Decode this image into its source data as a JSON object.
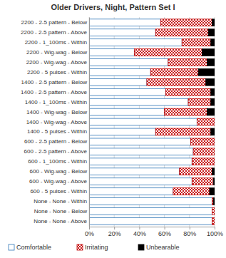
{
  "chart_data": {
    "type": "bar",
    "orientation": "horizontal",
    "stacked": true,
    "grid": true,
    "legend": "bottom",
    "title": "Older Drivers, Night, Pattern Set I",
    "categories": [
      "2200 - 2-5 pattern - Below",
      "2200 - 2-5 pattern - Above",
      "2200 - 1_100ms - Within",
      "2200 - Wig-wag - Below",
      "2200 - Wig-wag - Above",
      "2200 - 5 pulses - Within",
      "1400 - 2-5 pattern - Below",
      "1400 - 2-5 pattern - Above",
      "1400 - 1_100ms - Within",
      "1400 - Wig-wag - Below",
      "1400 - Wig-wag - Above",
      "1400 - 5 pulses - Within",
      "600 - 2-5 pattern - Below",
      "600 - 2-5 pattern - Above",
      "600 - 1_100ms - Within",
      "600 - Wig-wag - Below",
      "600 - Wig-wag - Above",
      "600 - 5 pulses - Within",
      "None - None - Within",
      "None - None - Below",
      "None - None - Above"
    ],
    "series": [
      {
        "name": "Comfortable",
        "color": "#2e75b6",
        "values": [
          57,
          53,
          74,
          36,
          63,
          49,
          46,
          61,
          79,
          60,
          86,
          53,
          81,
          83,
          82,
          72,
          82,
          67,
          98,
          98,
          98
        ]
      },
      {
        "name": "Irritating",
        "color": "#c00000",
        "values": [
          41,
          42,
          23,
          54,
          31,
          38,
          47,
          36,
          18,
          34,
          14,
          44,
          19,
          17,
          18,
          26,
          17,
          29,
          1,
          2,
          2
        ]
      },
      {
        "name": "Unbearable",
        "color": "#000000",
        "values": [
          2,
          5,
          3,
          10,
          6,
          13,
          7,
          3,
          3,
          6,
          0,
          3,
          0,
          0,
          0,
          2,
          1,
          4,
          1,
          0,
          0
        ]
      }
    ],
    "xlim": [
      0,
      100
    ],
    "xticks": [
      {
        "value": 0,
        "label": "0%"
      },
      {
        "value": 20,
        "label": "20%"
      },
      {
        "value": 40,
        "label": "40%"
      },
      {
        "value": 60,
        "label": "60%"
      },
      {
        "value": 80,
        "label": "80%"
      },
      {
        "value": 100,
        "label": "100%"
      }
    ]
  }
}
